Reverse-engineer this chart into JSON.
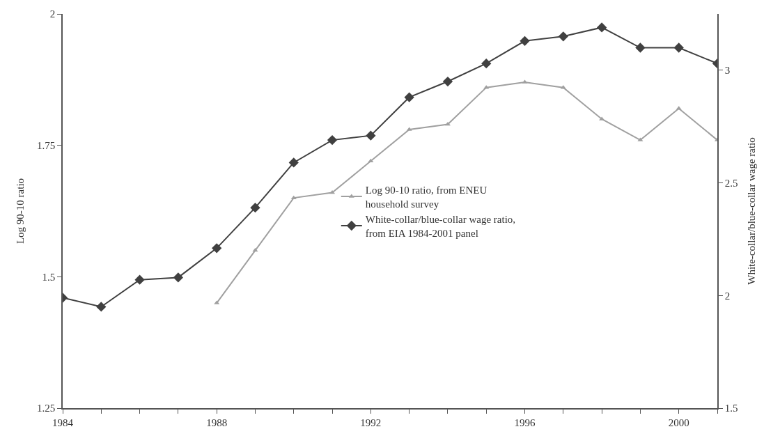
{
  "chart_data": {
    "type": "line",
    "ylabel": "Log 90-10 ratio",
    "y2label": "White-collar/blue-collar wage ratio",
    "x": [
      1984,
      1985,
      1986,
      1987,
      1988,
      1989,
      1990,
      1991,
      1992,
      1993,
      1994,
      1995,
      1996,
      1997,
      1998,
      1999,
      2000,
      2001
    ],
    "series": [
      {
        "name": "Log 90-10 ratio, from ENEU\nhousehold survey",
        "color": "#a0a0a0",
        "marker": "triangle",
        "values": [
          null,
          null,
          null,
          null,
          1.45,
          1.55,
          1.65,
          1.66,
          1.72,
          1.78,
          1.79,
          1.86,
          1.87,
          1.86,
          1.8,
          1.76,
          1.82,
          1.76
        ]
      },
      {
        "name": "White-collar/blue-collar wage ratio,\nfrom EIA 1984-2001 panel",
        "color": "#404040",
        "marker": "diamond",
        "axis": "y2",
        "values": [
          1.99,
          1.95,
          2.07,
          2.08,
          2.21,
          2.39,
          2.59,
          2.69,
          2.71,
          2.88,
          2.95,
          3.03,
          3.13,
          3.15,
          3.19,
          3.1,
          3.1,
          3.03
        ]
      }
    ],
    "xlim": [
      1984,
      2001
    ],
    "xticks": [
      1984,
      {
        "value": 1985,
        "label": null
      },
      {
        "value": 1986,
        "label": null
      },
      {
        "value": 1987,
        "label": null
      },
      1988,
      {
        "value": 1989,
        "label": null
      },
      {
        "value": 1990,
        "label": null
      },
      {
        "value": 1991,
        "label": null
      },
      1992,
      {
        "value": 1993,
        "label": null
      },
      {
        "value": 1994,
        "label": null
      },
      {
        "value": 1995,
        "label": null
      },
      1996,
      {
        "value": 1997,
        "label": null
      },
      {
        "value": 1998,
        "label": null
      },
      {
        "value": 1999,
        "label": null
      },
      2000,
      {
        "value": 2001,
        "label": null
      }
    ],
    "ylim": [
      1.25,
      2
    ],
    "yticks": [
      1.25,
      1.5,
      1.75,
      2
    ],
    "y2lim": [
      1.5,
      3.25
    ],
    "y2ticks": [
      1.5,
      2,
      2.5,
      3
    ],
    "legend": "center",
    "line_style": "solid"
  }
}
